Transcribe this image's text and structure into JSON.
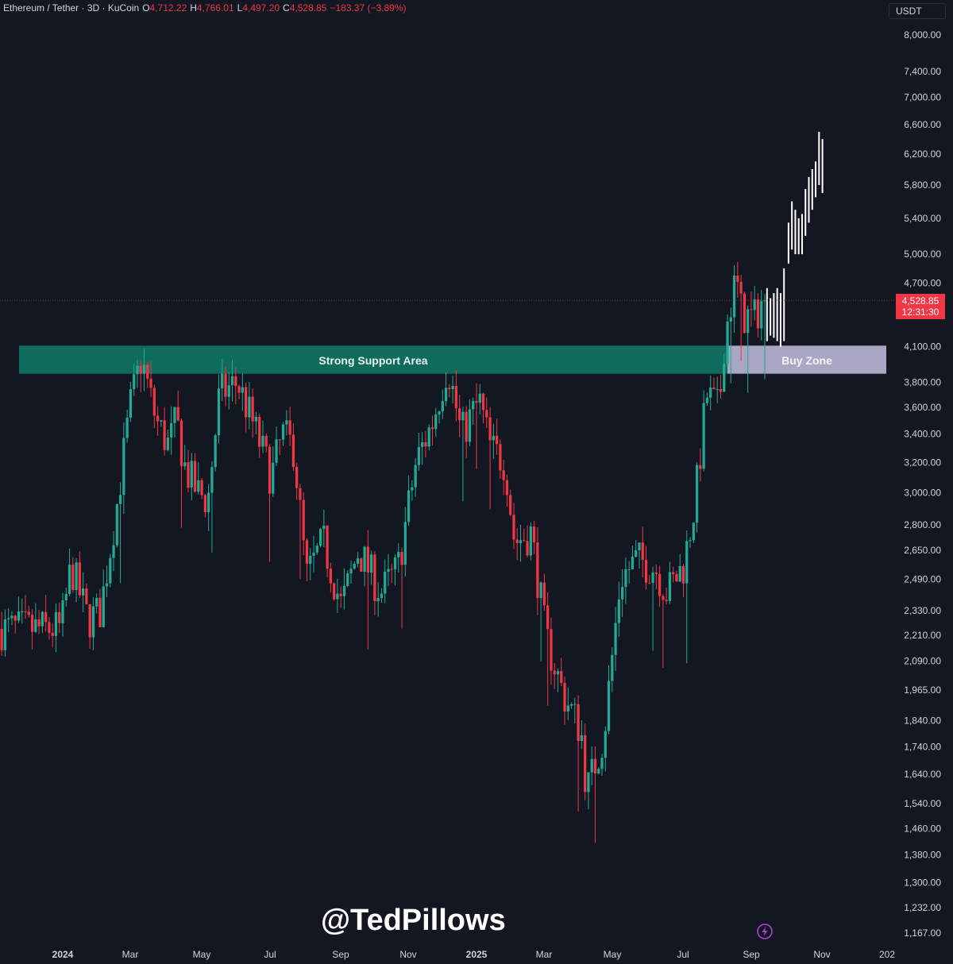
{
  "header": {
    "symbol": "Ethereum / Tether · 3D · KuCoin",
    "o_label": "O",
    "o_value": "4,712.22",
    "h_label": "H",
    "h_value": "4,766.01",
    "l_label": "L",
    "l_value": "4,497.20",
    "c_label": "C",
    "c_value": "4,528.85",
    "change": "−183.37 (−3.89%)"
  },
  "currency_button": "USDT",
  "price_tag": {
    "price": "4,528.85",
    "countdown": "12:31:30"
  },
  "annotations": {
    "support": "Strong Support Area",
    "buy_zone": "Buy Zone",
    "watermark": "@TedPillows"
  },
  "colors": {
    "background": "#131722",
    "up": "#22ab94",
    "down": "#f23645",
    "support_zone": "#0f6b5c",
    "buy_zone": "#a9a6c3",
    "projection": "#ffffff"
  },
  "icons": {
    "bolt": "lightning-bolt-icon"
  },
  "chart_data": {
    "type": "candlestick",
    "title": "Ethereum / Tether · 3D · KuCoin",
    "y_ticks": [
      "8,000.00",
      "7,400.00",
      "7,000.00",
      "6,600.00",
      "6,200.00",
      "5,800.00",
      "5,400.00",
      "5,000.00",
      "4,700.00",
      "4,100.00",
      "3,800.00",
      "3,600.00",
      "3,400.00",
      "3,200.00",
      "3,000.00",
      "2,800.00",
      "2,650.00",
      "2,490.00",
      "2,330.00",
      "2,210.00",
      "2,090.00",
      "1,965.00",
      "1,840.00",
      "1,740.00",
      "1,640.00",
      "1,540.00",
      "1,460.00",
      "1,380.00",
      "1,300.00",
      "1,232.00",
      "1,167.00"
    ],
    "y_tick_values": [
      8000,
      7400,
      7000,
      6600,
      6200,
      5800,
      5400,
      5000,
      4700,
      4100,
      3800,
      3600,
      3400,
      3200,
      3000,
      2800,
      2650,
      2490,
      2330,
      2210,
      2090,
      1965,
      1840,
      1740,
      1640,
      1540,
      1460,
      1380,
      1300,
      1232,
      1167
    ],
    "y_scale": "log",
    "x_ticks": [
      "2024",
      "Mar",
      "May",
      "Jul",
      "Sep",
      "Nov",
      "2025",
      "Mar",
      "May",
      "Jul",
      "Sep",
      "Nov",
      "202"
    ],
    "last_price": 4528.85,
    "support_zone": [
      3870,
      4110
    ],
    "buy_zone": [
      3870,
      4110
    ],
    "price_path": [
      [
        "2024-01-01",
        2240
      ],
      [
        "2024-01-10",
        2560
      ],
      [
        "2024-01-25",
        2280
      ],
      [
        "2024-02-05",
        2330
      ],
      [
        "2024-02-20",
        2950
      ],
      [
        "2024-03-02",
        3600
      ],
      [
        "2024-03-12",
        4000
      ],
      [
        "2024-03-25",
        3500
      ],
      [
        "2024-04-05",
        3320
      ],
      [
        "2024-04-12",
        3500
      ],
      [
        "2024-04-20",
        3150
      ],
      [
        "2024-05-01",
        3000
      ],
      [
        "2024-05-10",
        2950
      ],
      [
        "2024-05-20",
        3700
      ],
      [
        "2024-06-05",
        3800
      ],
      [
        "2024-06-20",
        3450
      ],
      [
        "2024-07-05",
        3100
      ],
      [
        "2024-07-15",
        3400
      ],
      [
        "2024-07-25",
        3300
      ],
      [
        "2024-08-05",
        2500
      ],
      [
        "2024-08-20",
        2700
      ],
      [
        "2024-09-05",
        2350
      ],
      [
        "2024-09-20",
        2650
      ],
      [
        "2024-10-10",
        2420
      ],
      [
        "2024-10-25",
        2550
      ],
      [
        "2024-11-10",
        3200
      ],
      [
        "2024-11-25",
        3500
      ],
      [
        "2024-12-08",
        3950
      ],
      [
        "2024-12-20",
        3400
      ],
      [
        "2025-01-05",
        3650
      ],
      [
        "2025-01-15",
        3300
      ],
      [
        "2025-01-28",
        3200
      ],
      [
        "2025-02-05",
        2700
      ],
      [
        "2025-02-20",
        2750
      ],
      [
        "2025-03-05",
        2200
      ],
      [
        "2025-03-20",
        1950
      ],
      [
        "2025-04-05",
        1800
      ],
      [
        "2025-04-10",
        1580
      ],
      [
        "2025-04-25",
        1780
      ],
      [
        "2025-05-10",
        2500
      ],
      [
        "2025-05-25",
        2600
      ],
      [
        "2025-06-10",
        2550
      ],
      [
        "2025-06-20",
        2420
      ],
      [
        "2025-07-05",
        2570
      ],
      [
        "2025-07-15",
        2950
      ],
      [
        "2025-07-25",
        3700
      ],
      [
        "2025-08-05",
        3580
      ],
      [
        "2025-08-10",
        4200
      ],
      [
        "2025-08-20",
        4750
      ],
      [
        "2025-08-25",
        4400
      ],
      [
        "2025-09-05",
        4350
      ],
      [
        "2025-09-12",
        4528.85
      ]
    ],
    "projection": [
      [
        "2025-09-15",
        4650,
        4150
      ],
      [
        "2025-09-18",
        4550,
        4200
      ],
      [
        "2025-09-21",
        4600,
        4180
      ],
      [
        "2025-09-24",
        4650,
        4150
      ],
      [
        "2025-09-27",
        4600,
        4100
      ],
      [
        "2025-09-30",
        4850,
        4150
      ],
      [
        "2025-10-04",
        5350,
        4900
      ],
      [
        "2025-10-07",
        5600,
        5050
      ],
      [
        "2025-10-10",
        5500,
        5000
      ],
      [
        "2025-10-13",
        5400,
        5000
      ],
      [
        "2025-10-16",
        5450,
        5000
      ],
      [
        "2025-10-19",
        5750,
        5200
      ],
      [
        "2025-10-22",
        5900,
        5350
      ],
      [
        "2025-10-25",
        6000,
        5500
      ],
      [
        "2025-10-28",
        6100,
        5650
      ],
      [
        "2025-10-31",
        6500,
        5800
      ],
      [
        "2025-11-03",
        6400,
        5700
      ]
    ]
  }
}
